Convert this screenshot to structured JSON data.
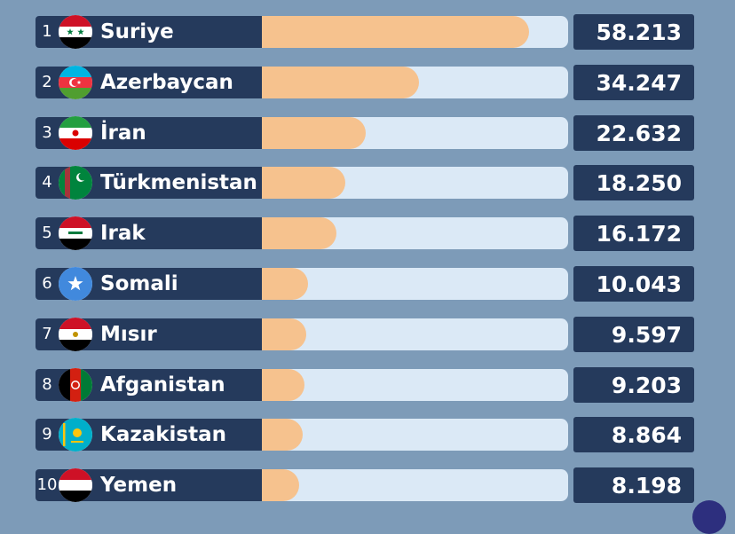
{
  "chart_data": {
    "type": "bar",
    "orientation": "horizontal",
    "categories": [
      "Suriye",
      "Azerbaycan",
      "İran",
      "Türkmenistan",
      "Irak",
      "Somali",
      "Mısır",
      "Afganistan",
      "Kazakistan",
      "Yemen"
    ],
    "ranks": [
      "1",
      "2",
      "3",
      "4",
      "5",
      "6",
      "7",
      "8",
      "9",
      "10"
    ],
    "values": [
      58213,
      34247,
      22632,
      18250,
      16172,
      10043,
      9597,
      9203,
      8864,
      8198
    ],
    "value_labels": [
      "58.213",
      "34.247",
      "22.632",
      "18.250",
      "16.172",
      "10.043",
      "9.597",
      "9.203",
      "8.864",
      "8.198"
    ],
    "flag_icons": [
      "syria-flag-icon",
      "azerbaijan-flag-icon",
      "iran-flag-icon",
      "turkmenistan-flag-icon",
      "iraq-flag-icon",
      "somalia-flag-icon",
      "egypt-flag-icon",
      "afghanistan-flag-icon",
      "kazakhstan-flag-icon",
      "yemen-flag-icon"
    ],
    "xlim": [
      0,
      60000
    ],
    "title": "",
    "xlabel": "",
    "ylabel": "",
    "grid": false,
    "legend": "none",
    "colors": {
      "background": "#7d9bb8",
      "label_background": "#253a5c",
      "bar_fill": "#f6c28e",
      "bar_track": "#dbe9f6",
      "value_box": "#253a5c",
      "text": "#ffffff"
    }
  }
}
